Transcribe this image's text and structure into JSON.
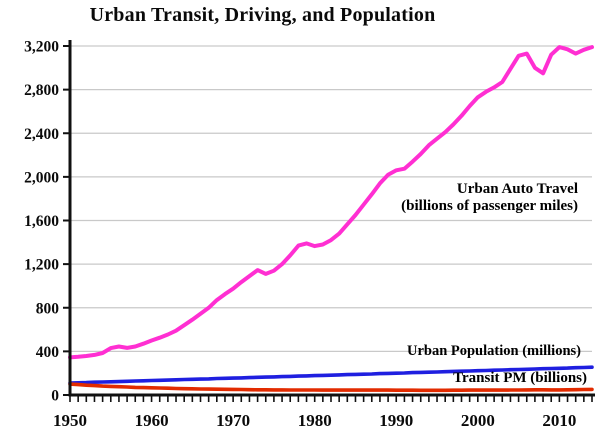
{
  "chart_data": {
    "type": "line",
    "title": "Urban Transit, Driving, and Population",
    "xlabel": "",
    "ylabel": "",
    "xlim": [
      1950,
      2014
    ],
    "ylim": [
      0,
      3200
    ],
    "grid": "horizontal",
    "grid_color": "#c9c9c9",
    "legend_position": "inline-annotations",
    "x_ticks": [
      1950,
      1960,
      1970,
      1980,
      1990,
      2000,
      2010
    ],
    "x_tick_labels": [
      "1950",
      "1960",
      "1970",
      "1980",
      "1990",
      "2000",
      "2010"
    ],
    "x_minor_tick_interval_years": 1,
    "y_ticks": [
      0,
      400,
      800,
      1200,
      1600,
      2000,
      2400,
      2800,
      3200
    ],
    "y_tick_labels": [
      "0",
      "400",
      "800",
      "1,200",
      "1,600",
      "2,000",
      "2,400",
      "2,800",
      "3,200"
    ],
    "x": [
      1950,
      1951,
      1952,
      1953,
      1954,
      1955,
      1956,
      1957,
      1958,
      1959,
      1960,
      1961,
      1962,
      1963,
      1964,
      1965,
      1966,
      1967,
      1968,
      1969,
      1970,
      1971,
      1972,
      1973,
      1974,
      1975,
      1976,
      1977,
      1978,
      1979,
      1980,
      1981,
      1982,
      1983,
      1984,
      1985,
      1986,
      1987,
      1988,
      1989,
      1990,
      1991,
      1992,
      1993,
      1994,
      1995,
      1996,
      1997,
      1998,
      1999,
      2000,
      2001,
      2002,
      2003,
      2004,
      2005,
      2006,
      2007,
      2008,
      2009,
      2010,
      2011,
      2012,
      2013,
      2014
    ],
    "series": [
      {
        "name": "Urban Auto Travel",
        "annotation": "Urban Auto Travel (billions of passenger miles)",
        "color": "#ff2fd2",
        "values": [
          345,
          350,
          358,
          368,
          385,
          430,
          445,
          432,
          445,
          470,
          500,
          525,
          555,
          590,
          640,
          690,
          745,
          800,
          870,
          925,
          975,
          1035,
          1090,
          1145,
          1110,
          1140,
          1200,
          1280,
          1370,
          1390,
          1365,
          1380,
          1420,
          1480,
          1565,
          1650,
          1745,
          1840,
          1940,
          2020,
          2060,
          2075,
          2140,
          2210,
          2290,
          2350,
          2410,
          2480,
          2560,
          2650,
          2730,
          2780,
          2820,
          2870,
          2990,
          3110,
          3130,
          3000,
          2950,
          3120,
          3190,
          3170,
          3130,
          3165,
          3190
        ]
      },
      {
        "name": "Urban Population",
        "annotation": "Urban Population (millions)",
        "color": "#1f1fe0",
        "values": [
          110,
          112,
          114,
          117,
          119,
          121,
          123,
          126,
          128,
          130,
          133,
          135,
          137,
          139,
          142,
          144,
          146,
          148,
          151,
          153,
          155,
          157,
          160,
          162,
          164,
          166,
          169,
          171,
          173,
          175,
          178,
          180,
          182,
          184,
          187,
          189,
          191,
          193,
          196,
          198,
          200,
          202,
          205,
          207,
          209,
          211,
          214,
          216,
          218,
          220,
          223,
          225,
          227,
          229,
          232,
          234,
          236,
          238,
          241,
          243,
          245,
          247,
          250,
          252,
          255
        ]
      },
      {
        "name": "Transit PM",
        "annotation": "Transit PM (billions)",
        "color": "#e22b00",
        "values": [
          100,
          95,
          90,
          86,
          82,
          79,
          76,
          73,
          70,
          68,
          66,
          64,
          62,
          60,
          58,
          57,
          55,
          54,
          53,
          52,
          51,
          50,
          49,
          48,
          48,
          47,
          47,
          46,
          46,
          46,
          46,
          45,
          45,
          45,
          45,
          45,
          45,
          45,
          45,
          45,
          44,
          44,
          44,
          43,
          43,
          43,
          43,
          44,
          44,
          45,
          45,
          45,
          45,
          45,
          46,
          46,
          47,
          48,
          48,
          47,
          47,
          48,
          49,
          50,
          51
        ]
      }
    ]
  },
  "annotations": {
    "auto_line1": "Urban Auto Travel",
    "auto_line2": "(billions of passenger miles)",
    "population": "Urban Population (millions)",
    "transit": "Transit PM (billions)"
  },
  "axis_color": "#111111"
}
